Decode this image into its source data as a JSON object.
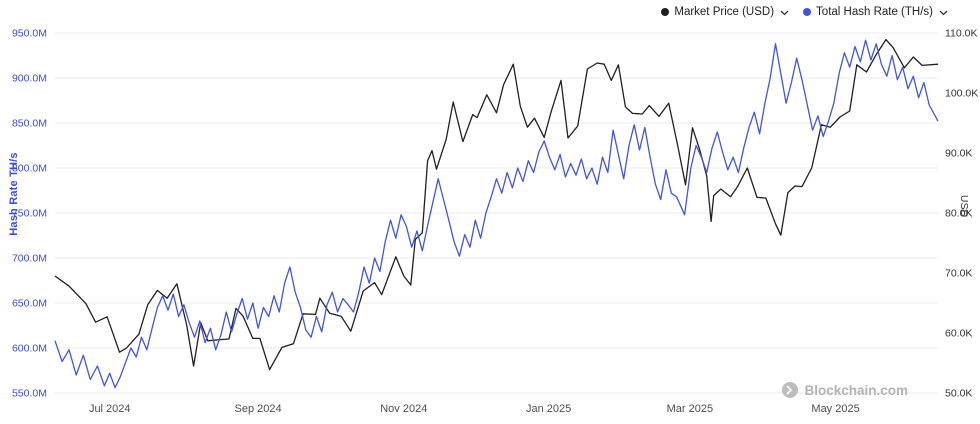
{
  "legend": {
    "market_price": {
      "label": "Market Price (USD)"
    },
    "hash_rate": {
      "label": "Total Hash Rate (TH/s)"
    }
  },
  "watermark": {
    "text": "Blockchain.com"
  },
  "colors": {
    "hash_rate_blue": "#4254df",
    "market_price_black": "#1f1f1f",
    "left_axis_label": "#3b4cd8",
    "right_axis_label": "#333333",
    "x_axis_label": "#4d4d4d",
    "grid": "#ebebeb",
    "watermark": "#b3b3b3"
  },
  "chart_data": {
    "type": "line",
    "title": "",
    "grid": "horizontal",
    "legend_position": "top-right",
    "x_axis": {
      "tick_labels": [
        "Jul 2024",
        "Sep 2024",
        "Nov 2024",
        "Jan 2025",
        "Mar 2025",
        "May 2025"
      ],
      "tick_positions": [
        0.062,
        0.23,
        0.395,
        0.559,
        0.719,
        0.884
      ]
    },
    "y_left": {
      "label": "Hash Rate TH/s",
      "unit": "M TH/s",
      "min": 550,
      "max": 950,
      "ticks": [
        "950.0M",
        "900.0M",
        "850.0M",
        "800.0M",
        "750.0M",
        "700.0M",
        "650.0M",
        "600.0M",
        "550.0M"
      ],
      "tick_values": [
        950,
        900,
        850,
        800,
        750,
        700,
        650,
        600,
        550
      ]
    },
    "y_right": {
      "label": "USD",
      "unit": "K USD",
      "min": 50,
      "max": 110,
      "ticks": [
        "110.0K",
        "100.0K",
        "90.0K",
        "80.0K",
        "70.0K",
        "60.0K",
        "50.0K"
      ],
      "tick_values": [
        110,
        100,
        90,
        80,
        70,
        60,
        50
      ]
    },
    "series": [
      {
        "name": "Market Price (USD)",
        "id": "market-price-line",
        "color": "#1f1f1f",
        "axis": "right",
        "points": [
          [
            0.0,
            69.5
          ],
          [
            0.016,
            67.8
          ],
          [
            0.035,
            64.9
          ],
          [
            0.046,
            61.8
          ],
          [
            0.059,
            62.7
          ],
          [
            0.073,
            56.8
          ],
          [
            0.081,
            57.5
          ],
          [
            0.095,
            59.8
          ],
          [
            0.105,
            64.7
          ],
          [
            0.116,
            67.1
          ],
          [
            0.127,
            65.8
          ],
          [
            0.138,
            68.2
          ],
          [
            0.149,
            61.4
          ],
          [
            0.157,
            54.5
          ],
          [
            0.165,
            61.7
          ],
          [
            0.173,
            58.7
          ],
          [
            0.187,
            58.9
          ],
          [
            0.197,
            59.0
          ],
          [
            0.205,
            64.1
          ],
          [
            0.213,
            62.8
          ],
          [
            0.224,
            59.1
          ],
          [
            0.232,
            59.1
          ],
          [
            0.243,
            53.9
          ],
          [
            0.257,
            57.6
          ],
          [
            0.27,
            58.2
          ],
          [
            0.281,
            63.2
          ],
          [
            0.295,
            63.1
          ],
          [
            0.3,
            65.8
          ],
          [
            0.311,
            63.3
          ],
          [
            0.324,
            62.8
          ],
          [
            0.335,
            60.3
          ],
          [
            0.349,
            67.0
          ],
          [
            0.362,
            68.4
          ],
          [
            0.37,
            66.4
          ],
          [
            0.386,
            72.7
          ],
          [
            0.395,
            69.5
          ],
          [
            0.403,
            68.0
          ],
          [
            0.408,
            75.6
          ],
          [
            0.416,
            76.7
          ],
          [
            0.422,
            88.7
          ],
          [
            0.427,
            90.4
          ],
          [
            0.432,
            87.3
          ],
          [
            0.443,
            92.3
          ],
          [
            0.451,
            98.5
          ],
          [
            0.462,
            91.9
          ],
          [
            0.473,
            96.4
          ],
          [
            0.478,
            95.9
          ],
          [
            0.489,
            99.7
          ],
          [
            0.5,
            96.7
          ],
          [
            0.508,
            101.4
          ],
          [
            0.519,
            104.8
          ],
          [
            0.527,
            97.8
          ],
          [
            0.535,
            94.3
          ],
          [
            0.543,
            95.8
          ],
          [
            0.554,
            92.6
          ],
          [
            0.562,
            96.9
          ],
          [
            0.573,
            102.1
          ],
          [
            0.581,
            92.5
          ],
          [
            0.592,
            94.5
          ],
          [
            0.603,
            104.0
          ],
          [
            0.614,
            105.0
          ],
          [
            0.622,
            104.8
          ],
          [
            0.63,
            102.1
          ],
          [
            0.638,
            104.7
          ],
          [
            0.646,
            97.7
          ],
          [
            0.654,
            96.6
          ],
          [
            0.665,
            96.5
          ],
          [
            0.673,
            97.9
          ],
          [
            0.684,
            96.1
          ],
          [
            0.695,
            98.3
          ],
          [
            0.705,
            91.4
          ],
          [
            0.714,
            84.7
          ],
          [
            0.722,
            94.2
          ],
          [
            0.73,
            90.6
          ],
          [
            0.738,
            86.2
          ],
          [
            0.743,
            78.6
          ],
          [
            0.746,
            82.9
          ],
          [
            0.754,
            84.0
          ],
          [
            0.765,
            82.7
          ],
          [
            0.773,
            84.4
          ],
          [
            0.784,
            87.5
          ],
          [
            0.795,
            82.6
          ],
          [
            0.805,
            82.5
          ],
          [
            0.816,
            78.2
          ],
          [
            0.822,
            76.3
          ],
          [
            0.83,
            83.4
          ],
          [
            0.838,
            84.5
          ],
          [
            0.846,
            84.4
          ],
          [
            0.857,
            87.5
          ],
          [
            0.868,
            94.7
          ],
          [
            0.878,
            94.3
          ],
          [
            0.889,
            96.0
          ],
          [
            0.9,
            97.0
          ],
          [
            0.908,
            104.7
          ],
          [
            0.919,
            103.5
          ],
          [
            0.93,
            106.4
          ],
          [
            0.941,
            108.9
          ],
          [
            0.949,
            107.6
          ],
          [
            0.962,
            104.2
          ],
          [
            0.972,
            106.0
          ],
          [
            0.982,
            104.6
          ],
          [
            1.0,
            104.8
          ]
        ]
      },
      {
        "name": "Total Hash Rate (TH/s)",
        "id": "hash-rate-line",
        "color": "#4254df",
        "axis": "left",
        "points": [
          [
            0.0,
            608
          ],
          [
            0.008,
            585
          ],
          [
            0.016,
            598
          ],
          [
            0.024,
            570
          ],
          [
            0.032,
            592
          ],
          [
            0.04,
            565
          ],
          [
            0.048,
            580
          ],
          [
            0.056,
            558
          ],
          [
            0.062,
            572
          ],
          [
            0.068,
            556
          ],
          [
            0.074,
            568
          ],
          [
            0.08,
            584
          ],
          [
            0.086,
            600
          ],
          [
            0.092,
            590
          ],
          [
            0.098,
            612
          ],
          [
            0.104,
            598
          ],
          [
            0.11,
            622
          ],
          [
            0.116,
            645
          ],
          [
            0.122,
            658
          ],
          [
            0.128,
            642
          ],
          [
            0.134,
            660
          ],
          [
            0.14,
            635
          ],
          [
            0.146,
            648
          ],
          [
            0.152,
            628
          ],
          [
            0.158,
            612
          ],
          [
            0.164,
            630
          ],
          [
            0.17,
            606
          ],
          [
            0.176,
            622
          ],
          [
            0.182,
            598
          ],
          [
            0.188,
            615
          ],
          [
            0.194,
            640
          ],
          [
            0.2,
            618
          ],
          [
            0.206,
            638
          ],
          [
            0.212,
            655
          ],
          [
            0.218,
            632
          ],
          [
            0.224,
            650
          ],
          [
            0.23,
            622
          ],
          [
            0.236,
            645
          ],
          [
            0.242,
            635
          ],
          [
            0.248,
            658
          ],
          [
            0.254,
            640
          ],
          [
            0.26,
            672
          ],
          [
            0.266,
            690
          ],
          [
            0.272,
            662
          ],
          [
            0.278,
            645
          ],
          [
            0.284,
            620
          ],
          [
            0.29,
            612
          ],
          [
            0.296,
            635
          ],
          [
            0.302,
            618
          ],
          [
            0.308,
            648
          ],
          [
            0.314,
            662
          ],
          [
            0.32,
            640
          ],
          [
            0.326,
            655
          ],
          [
            0.332,
            648
          ],
          [
            0.338,
            640
          ],
          [
            0.344,
            662
          ],
          [
            0.35,
            690
          ],
          [
            0.356,
            672
          ],
          [
            0.362,
            700
          ],
          [
            0.368,
            685
          ],
          [
            0.374,
            718
          ],
          [
            0.38,
            742
          ],
          [
            0.386,
            722
          ],
          [
            0.392,
            748
          ],
          [
            0.398,
            735
          ],
          [
            0.404,
            712
          ],
          [
            0.41,
            730
          ],
          [
            0.416,
            708
          ],
          [
            0.422,
            736
          ],
          [
            0.428,
            762
          ],
          [
            0.434,
            788
          ],
          [
            0.44,
            765
          ],
          [
            0.446,
            742
          ],
          [
            0.452,
            718
          ],
          [
            0.458,
            702
          ],
          [
            0.464,
            726
          ],
          [
            0.47,
            712
          ],
          [
            0.476,
            742
          ],
          [
            0.482,
            722
          ],
          [
            0.488,
            750
          ],
          [
            0.494,
            768
          ],
          [
            0.5,
            788
          ],
          [
            0.506,
            772
          ],
          [
            0.512,
            795
          ],
          [
            0.518,
            778
          ],
          [
            0.524,
            800
          ],
          [
            0.53,
            785
          ],
          [
            0.536,
            808
          ],
          [
            0.542,
            795
          ],
          [
            0.548,
            818
          ],
          [
            0.554,
            830
          ],
          [
            0.56,
            812
          ],
          [
            0.566,
            798
          ],
          [
            0.572,
            815
          ],
          [
            0.578,
            790
          ],
          [
            0.584,
            805
          ],
          [
            0.59,
            792
          ],
          [
            0.596,
            810
          ],
          [
            0.602,
            788
          ],
          [
            0.608,
            800
          ],
          [
            0.614,
            782
          ],
          [
            0.62,
            812
          ],
          [
            0.626,
            795
          ],
          [
            0.632,
            842
          ],
          [
            0.638,
            815
          ],
          [
            0.644,
            788
          ],
          [
            0.65,
            825
          ],
          [
            0.656,
            848
          ],
          [
            0.662,
            820
          ],
          [
            0.668,
            845
          ],
          [
            0.674,
            812
          ],
          [
            0.68,
            782
          ],
          [
            0.686,
            765
          ],
          [
            0.692,
            798
          ],
          [
            0.698,
            772
          ],
          [
            0.704,
            768
          ],
          [
            0.713,
            748
          ],
          [
            0.72,
            800
          ],
          [
            0.726,
            825
          ],
          [
            0.732,
            812
          ],
          [
            0.738,
            795
          ],
          [
            0.744,
            822
          ],
          [
            0.75,
            840
          ],
          [
            0.756,
            818
          ],
          [
            0.762,
            798
          ],
          [
            0.768,
            812
          ],
          [
            0.774,
            795
          ],
          [
            0.78,
            822
          ],
          [
            0.786,
            845
          ],
          [
            0.792,
            862
          ],
          [
            0.798,
            838
          ],
          [
            0.804,
            872
          ],
          [
            0.81,
            900
          ],
          [
            0.816,
            938
          ],
          [
            0.822,
            905
          ],
          [
            0.828,
            872
          ],
          [
            0.834,
            895
          ],
          [
            0.84,
            922
          ],
          [
            0.846,
            898
          ],
          [
            0.852,
            870
          ],
          [
            0.858,
            842
          ],
          [
            0.864,
            858
          ],
          [
            0.87,
            835
          ],
          [
            0.876,
            852
          ],
          [
            0.882,
            872
          ],
          [
            0.888,
            905
          ],
          [
            0.894,
            928
          ],
          [
            0.9,
            912
          ],
          [
            0.906,
            935
          ],
          [
            0.912,
            918
          ],
          [
            0.918,
            942
          ],
          [
            0.924,
            920
          ],
          [
            0.93,
            938
          ],
          [
            0.936,
            915
          ],
          [
            0.942,
            902
          ],
          [
            0.948,
            925
          ],
          [
            0.954,
            898
          ],
          [
            0.96,
            912
          ],
          [
            0.966,
            888
          ],
          [
            0.972,
            902
          ],
          [
            0.978,
            878
          ],
          [
            0.984,
            895
          ],
          [
            0.99,
            870
          ],
          [
            1.0,
            852
          ]
        ]
      }
    ]
  }
}
